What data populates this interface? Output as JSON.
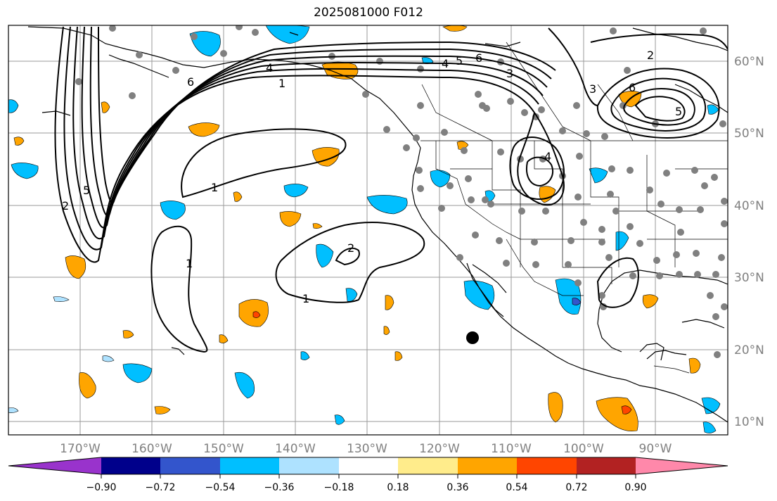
{
  "title": "2025081000 F012",
  "longitude_labels": [
    "170°W",
    "160°W",
    "150°W",
    "140°W",
    "130°W",
    "120°W",
    "110°W",
    "100°W",
    "90°W"
  ],
  "latitude_labels": [
    "60°N",
    "50°N",
    "40°N",
    "30°N",
    "20°N",
    "10°N"
  ],
  "colorbar": {
    "colors": [
      "#9933cc",
      "#00008b",
      "#3355cc",
      "#00bfff",
      "#aee2ff",
      "#ffffff",
      "#ffec8b",
      "#ffa500",
      "#ff4500",
      "#b22222",
      "#ff88aa"
    ],
    "tick_labels": [
      "−0.90",
      "−0.72",
      "−0.54",
      "−0.36",
      "−0.18",
      "0.18",
      "0.36",
      "0.54",
      "0.72",
      "0.90"
    ]
  },
  "contour_labels": [
    "1",
    "1",
    "1",
    "1",
    "2",
    "2",
    "2",
    "3",
    "3",
    "4",
    "4",
    "4",
    "5",
    "5",
    "5",
    "6",
    "6",
    "6"
  ]
}
